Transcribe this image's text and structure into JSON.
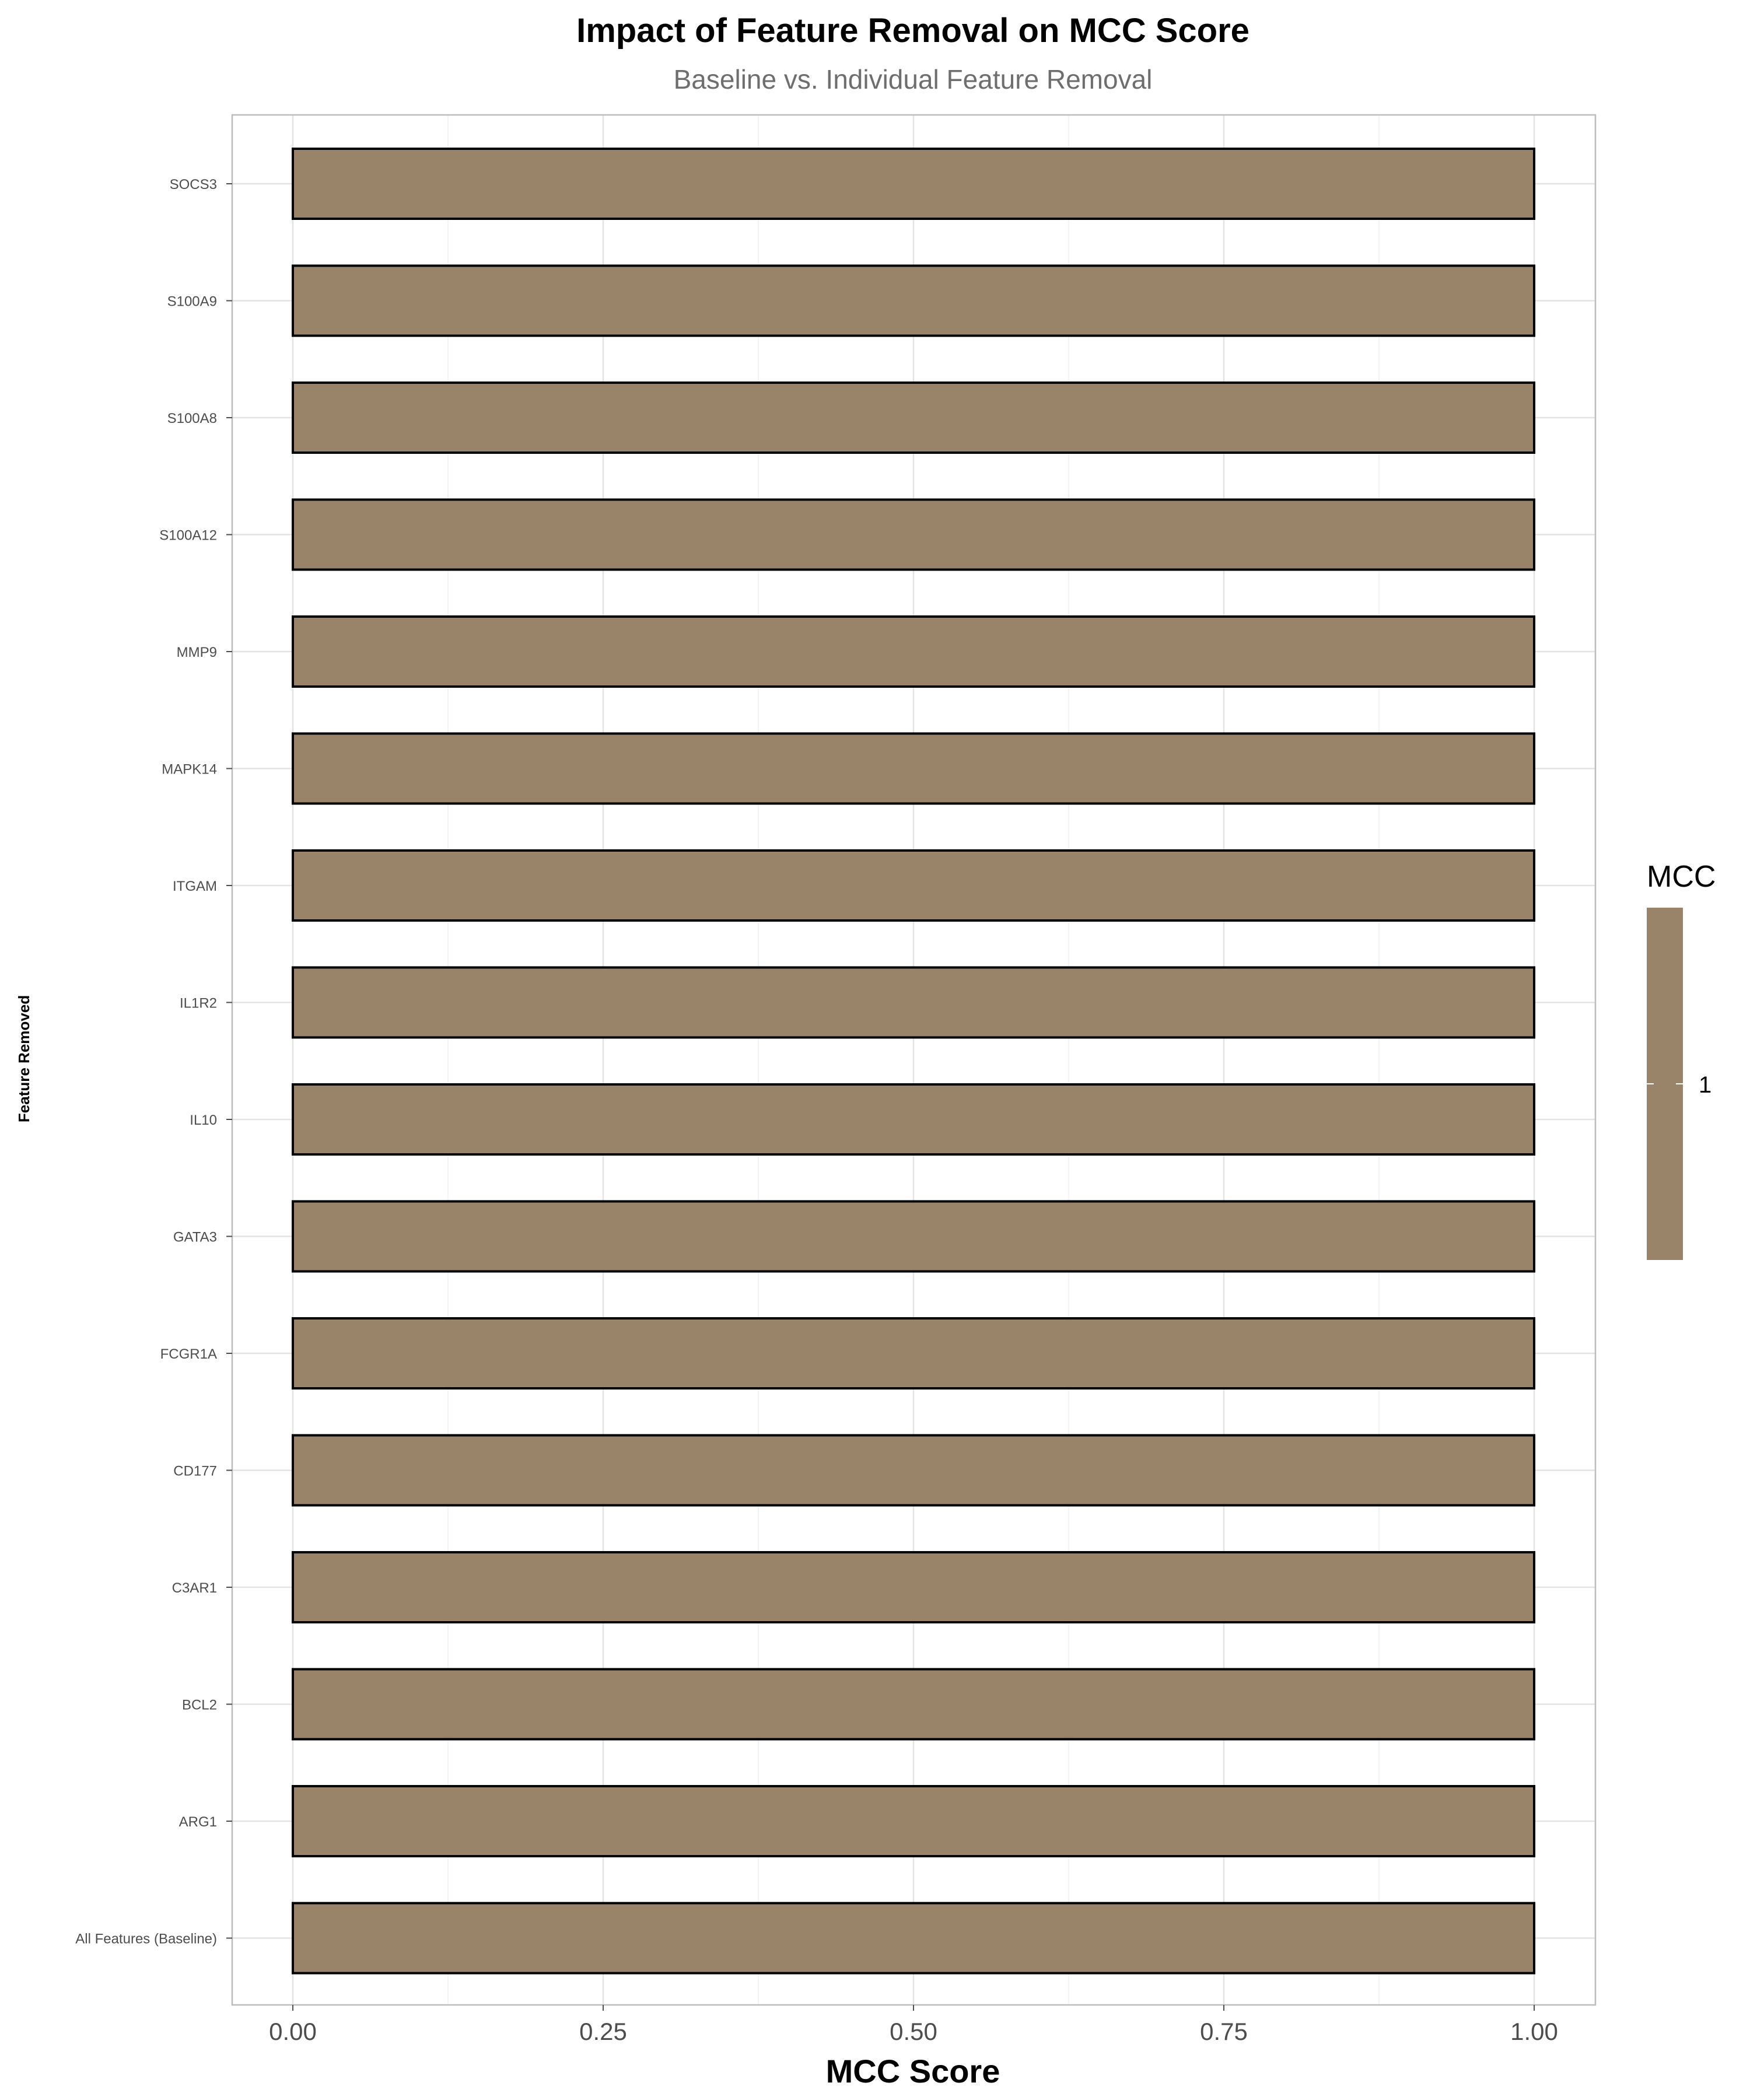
{
  "chart_data": {
    "type": "bar",
    "orientation": "horizontal",
    "title": "Impact of Feature Removal on MCC Score",
    "subtitle": "Baseline vs. Individual Feature Removal",
    "xlabel": "MCC Score",
    "ylabel": "Feature Removed",
    "xlim": [
      0,
      1
    ],
    "x_ticks": [
      "0.00",
      "0.25",
      "0.50",
      "0.75",
      "1.00"
    ],
    "categories": [
      "All Features (Baseline)",
      "ARG1",
      "BCL2",
      "C3AR1",
      "CD177",
      "FCGR1A",
      "GATA3",
      "IL10",
      "IL1R2",
      "ITGAM",
      "MAPK14",
      "MMP9",
      "S100A12",
      "S100A8",
      "S100A9",
      "SOCS3"
    ],
    "values": [
      1,
      1,
      1,
      1,
      1,
      1,
      1,
      1,
      1,
      1,
      1,
      1,
      1,
      1,
      1,
      1
    ],
    "bar_color": "#99846a",
    "bar_outline": "#000000",
    "grid": true,
    "legend": {
      "title": "MCC",
      "label": "1",
      "placement": "right",
      "color": "#99846a"
    }
  }
}
